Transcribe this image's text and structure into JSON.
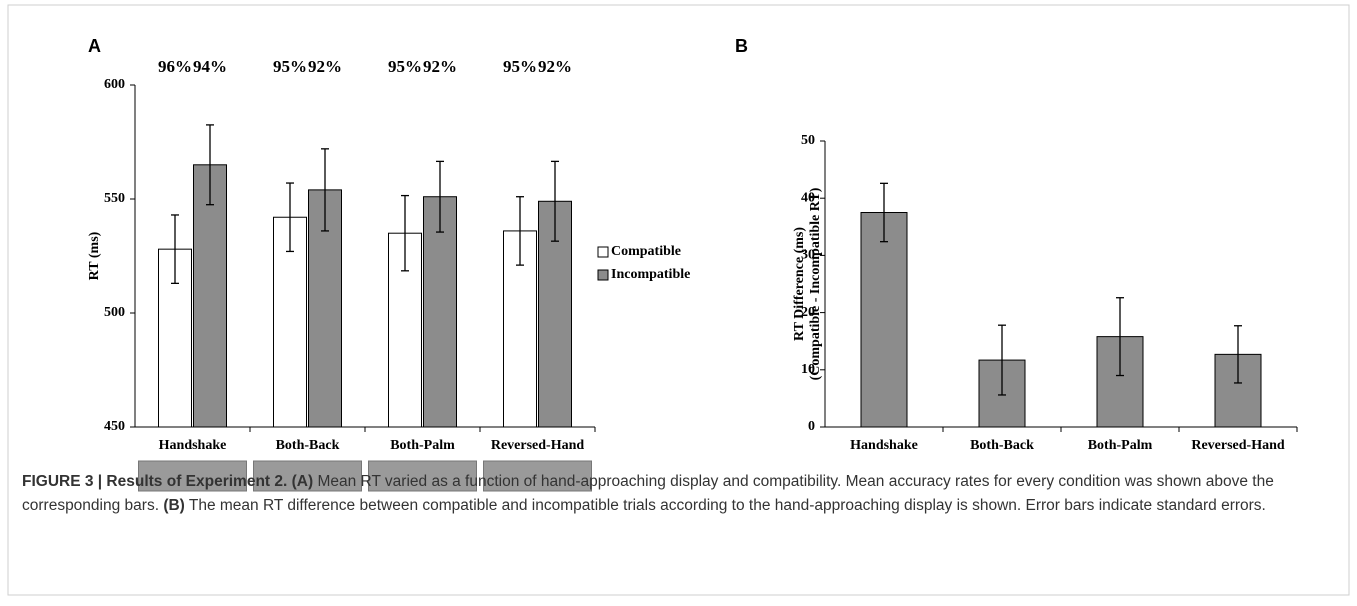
{
  "chart_data": [
    {
      "type": "bar",
      "panel": "A",
      "ylabel": [
        "RT (ms)"
      ],
      "categories": [
        "Handshake",
        "Both-Back",
        "Both-Palm",
        "Reversed-Hand"
      ],
      "series": [
        {
          "name": "Compatible",
          "color": "#ffffff",
          "values": [
            528,
            542,
            535,
            536
          ],
          "errors": [
            15,
            15,
            16.5,
            15
          ],
          "accuracy": [
            96,
            95,
            95,
            95
          ],
          "accuracy_labels": [
            "96%",
            "95%",
            "95%",
            "95%"
          ]
        },
        {
          "name": "Incompatible",
          "color": "#8c8c8c",
          "values": [
            565,
            554,
            551,
            549
          ],
          "errors": [
            17.5,
            18,
            15.5,
            17.5
          ],
          "accuracy": [
            94,
            92,
            92,
            92
          ],
          "accuracy_labels": [
            "94%",
            "92%",
            "92%",
            "92%"
          ]
        }
      ],
      "ylim": [
        450,
        600
      ],
      "yticks": [
        450,
        500,
        550,
        600
      ],
      "legend": "right"
    },
    {
      "type": "bar",
      "panel": "B",
      "ylabel": [
        "RT Difference (ms)",
        "(Compatible - Incompatible RT)"
      ],
      "categories": [
        "Handshake",
        "Both-Back",
        "Both-Palm",
        "Reversed-Hand"
      ],
      "series": [
        {
          "color": "#8c8c8c",
          "values": [
            37.5,
            11.7,
            15.8,
            12.7
          ],
          "errors": [
            5.1,
            6.1,
            6.8,
            5.0
          ]
        }
      ],
      "ylim": [
        0,
        50
      ],
      "yticks": [
        0,
        10,
        20,
        30,
        40,
        50
      ]
    }
  ],
  "caption": [
    {
      "text": "FIGURE 3 | Results of Experiment 2. (A)",
      "bold": true
    },
    {
      "text": " Mean RT varied as a function of hand-approaching display and compatibility. Mean accuracy rates for every condition was shown above the corresponding bars. ",
      "bold": false
    },
    {
      "text": "(B)",
      "bold": true
    },
    {
      "text": " The mean RT difference between compatible and incompatible trials according to the hand-approaching display is shown. Error bars indicate standard errors.",
      "bold": false
    }
  ]
}
